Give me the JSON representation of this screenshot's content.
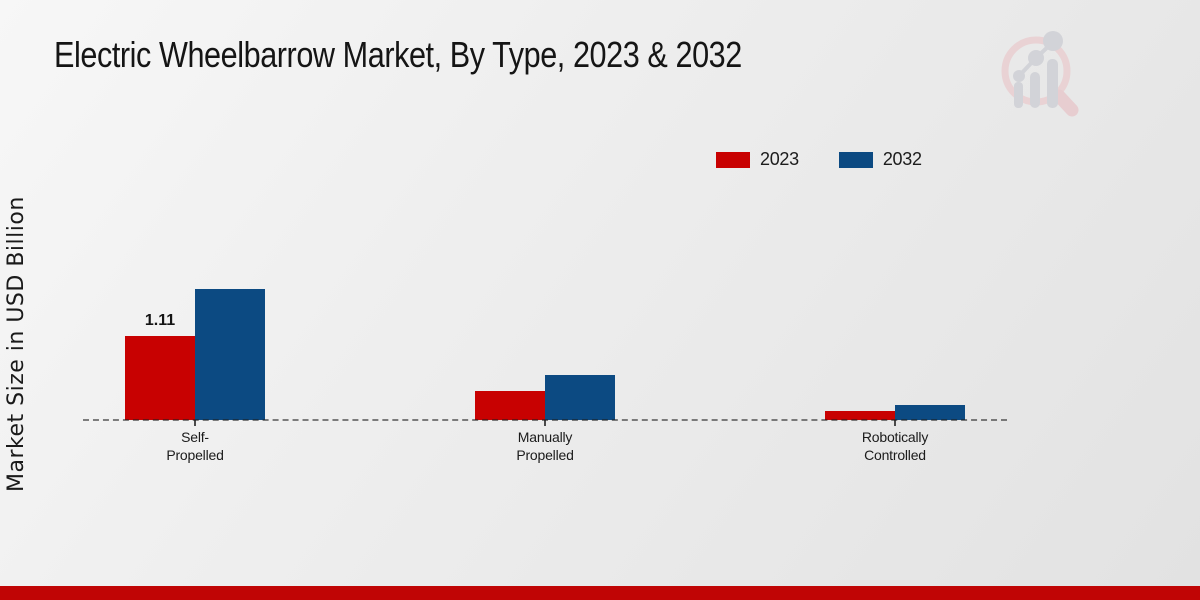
{
  "page": {
    "title": "Electric Wheelbarrow Market, By Type, 2023 & 2032",
    "y_axis_label": "Market Size in USD Billion",
    "footer_bar_color": "#c00505",
    "background_colors": [
      "#f7f7f7",
      "#e2e2e2"
    ],
    "logo": {
      "name": "magnifier-bar-chart-watermark",
      "ring_color": "#e9d2d4",
      "bars_color": "#d2d3d8"
    }
  },
  "legend": {
    "position": "top-right",
    "items": [
      {
        "label": "2023",
        "color": "#c80101"
      },
      {
        "label": "2032",
        "color": "#0c4a82"
      }
    ]
  },
  "chart_data": {
    "type": "bar",
    "title": "Electric Wheelbarrow Market, By Type, 2023 & 2032",
    "xlabel": "",
    "ylabel": "Market Size in USD Billion",
    "categories": [
      "Self-Propelled",
      "Manually Propelled",
      "Robotically Controlled"
    ],
    "category_lines": [
      [
        "Self-",
        "Propelled"
      ],
      [
        "Manually",
        "Propelled"
      ],
      [
        "Robotically",
        "Controlled"
      ]
    ],
    "series": [
      {
        "name": "2023",
        "color": "#c80101",
        "values": [
          1.11,
          0.38,
          0.12
        ]
      },
      {
        "name": "2032",
        "color": "#0c4a82",
        "values": [
          1.73,
          0.6,
          0.2
        ]
      }
    ],
    "annotations": [
      {
        "category_index": 0,
        "series_index": 0,
        "text": "1.11"
      }
    ],
    "ylim": [
      0,
      1.9
    ],
    "y_ticks_visible": false,
    "gridlines": false,
    "baseline_style": "dashed",
    "legend_position": "top-right",
    "units": "USD Billion"
  }
}
